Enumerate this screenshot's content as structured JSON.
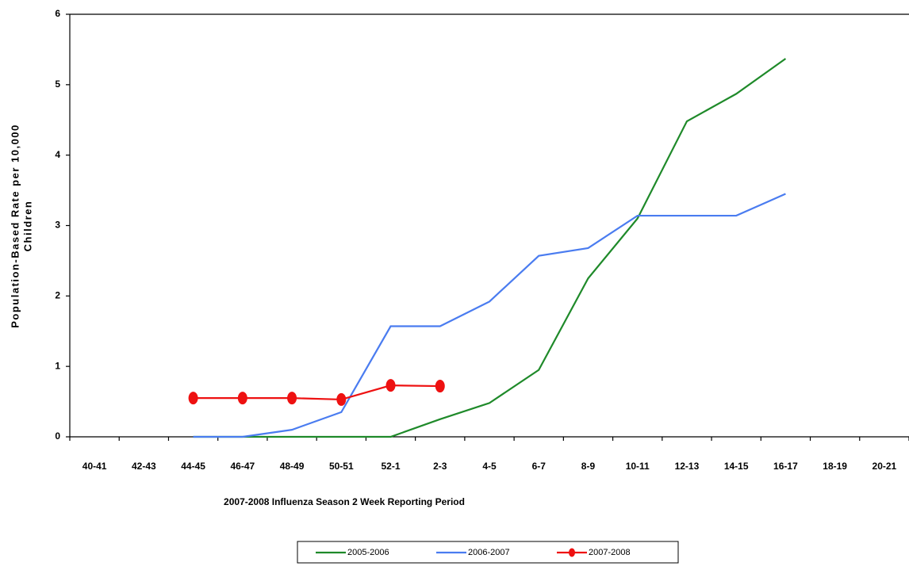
{
  "chart_data": {
    "type": "line",
    "ylabel": [
      "Population-Based Rate per 10,000",
      "Children"
    ],
    "xlabel": "2007-2008 Influenza Season 2 Week Reporting Period",
    "categories": [
      "40-41",
      "42-43",
      "44-45",
      "46-47",
      "48-49",
      "50-51",
      "52-1",
      "2-3",
      "4-5",
      "6-7",
      "8-9",
      "10-11",
      "12-13",
      "14-15",
      "16-17",
      "18-19",
      "20-21"
    ],
    "series": [
      {
        "name": "2005-2006",
        "color": "#1f8a2a",
        "marker": false,
        "values": [
          null,
          null,
          0,
          0,
          0,
          0,
          0,
          0.25,
          0.48,
          0.95,
          2.25,
          3.1,
          4.48,
          4.87,
          5.37,
          null,
          null
        ]
      },
      {
        "name": "2006-2007",
        "color": "#4a7cf0",
        "marker": false,
        "values": [
          null,
          null,
          0,
          0,
          0.1,
          0.35,
          1.57,
          1.57,
          1.92,
          2.57,
          2.68,
          3.14,
          3.14,
          3.14,
          3.45,
          null,
          null
        ]
      },
      {
        "name": "2007-2008",
        "color": "#ee1111",
        "marker": true,
        "values": [
          null,
          null,
          0.55,
          0.55,
          0.55,
          0.53,
          0.73,
          0.72,
          null,
          null,
          null,
          null,
          null,
          null,
          null,
          null,
          null
        ]
      }
    ],
    "ylim": [
      0,
      6
    ],
    "yticks": [
      0,
      1,
      2,
      3,
      4,
      5,
      6
    ]
  }
}
